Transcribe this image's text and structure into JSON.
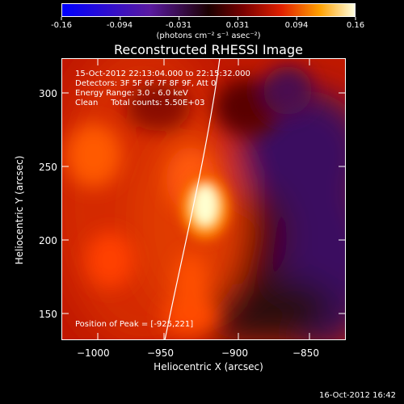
{
  "colorbar": {
    "tick_labels": [
      "-0.16",
      "-0.094",
      "-0.031",
      "0.031",
      "0.094",
      "0.16"
    ],
    "units": "(photons cm⁻² s⁻¹ asec⁻²)"
  },
  "title": "Reconstructed RHESSI Image",
  "info": {
    "line1": "15-Oct-2012 22:13:04.000 to 22:15:32.000",
    "line2": "Detectors: 3F 5F 6F 7F 8F 9F, Att 0",
    "line3": "Energy Range: 3.0 - 6.0 keV",
    "line4": "Clean     Total counts: 5.50E+03"
  },
  "peak_text": "Position of Peak = [-925,221]",
  "axes": {
    "xlabel": "Heliocentric X (arcsec)",
    "ylabel": "Heliocentric Y (arcsec)",
    "x_ticks": [
      "−1000",
      "−950",
      "−900",
      "−850"
    ],
    "y_ticks": [
      "300",
      "250",
      "200",
      "150"
    ],
    "xlim": [
      -1020,
      -830
    ],
    "ylim": [
      130,
      320
    ]
  },
  "footer": "16-Oct-2012 16:42"
}
